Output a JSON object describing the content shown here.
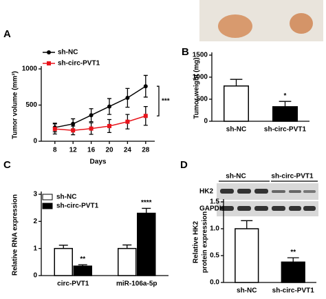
{
  "chart_data": [
    {
      "type": "line",
      "label": "A",
      "xlabel": "Days",
      "ylabel": "Tumor volume (mm³)",
      "x": [
        8,
        12,
        16,
        20,
        24,
        28
      ],
      "xlim": [
        5,
        30
      ],
      "xticks": [
        8,
        12,
        16,
        20,
        24,
        28
      ],
      "ylim": [
        0,
        1000
      ],
      "yticks": [
        0,
        500,
        1000
      ],
      "series": [
        {
          "name": "sh-NC",
          "color": "#000000",
          "values": [
            190,
            240,
            360,
            480,
            600,
            760
          ],
          "errors": [
            60,
            70,
            90,
            110,
            130,
            150
          ]
        },
        {
          "name": "sh-circ-PVT1",
          "color": "#e8141b",
          "values": [
            170,
            150,
            175,
            210,
            270,
            350
          ],
          "errors": [
            70,
            60,
            80,
            90,
            100,
            130
          ]
        }
      ],
      "annotations": [
        "***"
      ]
    },
    {
      "type": "bar",
      "label": "B",
      "ylabel": "Tumor weight (mg)",
      "categories": [
        "sh-NC",
        "sh-circ-PVT1"
      ],
      "values": [
        800,
        330
      ],
      "errors": [
        150,
        120
      ],
      "colors": [
        "#ffffff",
        "#000000"
      ],
      "ylim": [
        0,
        1500
      ],
      "yticks": [
        0,
        500,
        1000,
        1500
      ],
      "annotations": [
        "*"
      ]
    },
    {
      "type": "bar",
      "label": "C",
      "ylabel": "Relative RNA expression",
      "categories": [
        "circ-PVT1",
        "miR-106a-5p"
      ],
      "ylim": [
        0,
        3
      ],
      "yticks": [
        0,
        1,
        2,
        3
      ],
      "series": [
        {
          "name": "sh-NC",
          "color": "#ffffff",
          "values": [
            1.0,
            1.0
          ],
          "errors": [
            0.12,
            0.13
          ]
        },
        {
          "name": "sh-circ-PVT1",
          "color": "#000000",
          "values": [
            0.35,
            2.3
          ],
          "errors": [
            0.05,
            0.18
          ]
        }
      ],
      "annotations": [
        "**",
        "****"
      ]
    },
    {
      "type": "bar",
      "label": "D",
      "ylabel": [
        "Relative HK2",
        "protein expression"
      ],
      "categories": [
        "sh-NC",
        "sh-circ-PVT1"
      ],
      "values": [
        1.0,
        0.38
      ],
      "errors": [
        0.15,
        0.08
      ],
      "colors": [
        "#ffffff",
        "#000000"
      ],
      "ylim": [
        0,
        1.5
      ],
      "yticks": [
        {
          "value": 0,
          "label": "0.0"
        },
        {
          "value": 0.5,
          "label": "0.5"
        },
        {
          "value": 1,
          "label": "1.0"
        },
        {
          "value": 1.5,
          "label": "1.5"
        }
      ],
      "annotations": [
        "**"
      ],
      "blot": {
        "groups": [
          "sh-NC",
          "sh-circ-PVT1"
        ],
        "rows": [
          "HK2",
          "GAPDH"
        ]
      }
    }
  ]
}
